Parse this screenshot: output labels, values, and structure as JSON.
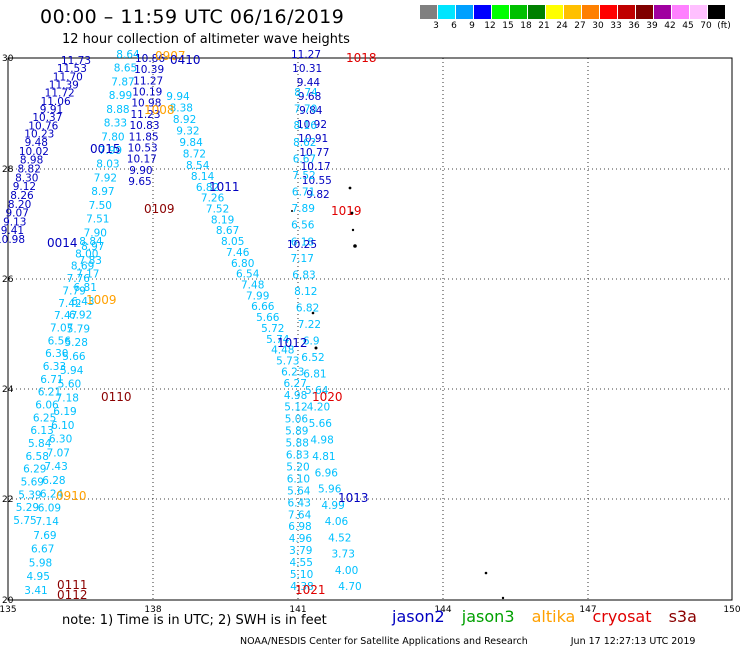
{
  "title": "00:00 – 11:59 UTC 06/16/2019",
  "subtitle": "12 hour collection of altimeter wave heights",
  "scale": {
    "colors": [
      "#808080",
      "#00e5ff",
      "#00a0ff",
      "#0000ff",
      "#00ff00",
      "#00c000",
      "#008000",
      "#ffff00",
      "#ffc000",
      "#ff8000",
      "#ff0000",
      "#c00000",
      "#800000",
      "#a000a0",
      "#ff80ff",
      "#ffc0ff",
      "#000000"
    ],
    "ticks": [
      "3",
      "6",
      "9",
      "12",
      "15",
      "18",
      "21",
      "24",
      "27",
      "30",
      "33",
      "36",
      "39",
      "42",
      "45",
      "70",
      "(ft)"
    ]
  },
  "axes": {
    "x_ticks": [
      "135",
      "138",
      "141",
      "144",
      "147",
      "150"
    ],
    "y_ticks": [
      "30",
      "28",
      "26",
      "24",
      "22",
      "20"
    ]
  },
  "tracks": [
    {
      "color": "#00c0ff",
      "labels": [
        "8.64",
        "8.65",
        "7.87",
        "8.99",
        "8.88",
        "8.33",
        "7.80",
        "7.99",
        "8.03",
        "7.92",
        "8.97",
        "7.50",
        "7.51",
        "7.90",
        "8.97",
        "7.83",
        "7.17",
        "6.81",
        "6.43",
        "6.92",
        "5.79",
        "5.28",
        "5.66",
        "5.94",
        "5.60",
        "7.18",
        "6.19",
        "6.10",
        "6.30",
        "7.07",
        "7.43",
        "6.28",
        "6.24",
        "6.09",
        "7.14",
        "7.69",
        "6.67",
        "5.98",
        "4.95",
        "3.41"
      ]
    },
    {
      "color": "#0000c0",
      "labels": [
        "10.86",
        "10.39",
        "11.27",
        "10.19",
        "10.98",
        "11.23",
        "10.83",
        "11.85",
        "10.53",
        "10.17",
        "9.90",
        "9.65"
      ]
    },
    {
      "color": "#00c0ff",
      "labels": [
        "9.94",
        "8.38",
        "8.92",
        "9.32",
        "9.84",
        "8.72",
        "8.54",
        "8.14",
        "6.82",
        "7.26",
        "7.52",
        "8.19",
        "8.67",
        "8.05",
        "7.46",
        "6.80",
        "6.54",
        "7.48",
        "7.99",
        "6.66",
        "5.66",
        "5.72",
        "5.74",
        "4.48",
        "5.73",
        "6.23",
        "6.27",
        "4.98",
        "5.12",
        "5.06",
        "5.89",
        "5.88",
        "6.83",
        "5.20",
        "6.10",
        "5.64",
        "6.43",
        "7.64",
        "6.98",
        "4.96",
        "3.79",
        "4.55",
        "5.10",
        "4.38"
      ]
    },
    {
      "color": "#0000c0",
      "labels": [
        "11.27",
        "10.31",
        "9.44",
        "9.68",
        "9.84",
        "10.92",
        "10.91",
        "10.77",
        "10.17",
        "10.55",
        "9.82"
      ]
    },
    {
      "color": "#00c0ff",
      "labels": [
        "8.74",
        "7.70",
        "8.16",
        "8.62",
        "6.67",
        "7.52",
        "6.71",
        "7.89",
        "6.56",
        "6.18",
        "7.17",
        "6.83",
        "8.12",
        "6.82",
        "7.22",
        "6.9",
        "6.52",
        "6.81",
        "5.64",
        "4.20",
        "5.66",
        "4.98",
        "4.81",
        "6.96",
        "5.96",
        "4.99",
        "4.06",
        "4.52",
        "3.73",
        "4.00",
        "4.70"
      ]
    },
    {
      "color": "#0000c0",
      "labels": [
        "10.25"
      ]
    },
    {
      "color": "#0000c0",
      "labels": [
        "11.73",
        "11.53",
        "11.70",
        "11.39",
        "11.72",
        "11.06",
        "9.91",
        "10.37",
        "10.76",
        "10.23",
        "9.48",
        "10.02",
        "8.98",
        "8.82",
        "8.30",
        "9.12",
        "8.26",
        "8.20",
        "9.07",
        "9.13",
        "9.41",
        "10.98"
      ]
    },
    {
      "color": "#00c0ff",
      "labels": [
        "8.84",
        "8.00",
        "8.69",
        "7.76",
        "7.79",
        "7.42",
        "7.47",
        "7.07",
        "6.56",
        "6.30",
        "6.33",
        "6.71",
        "6.21",
        "6.06",
        "6.25",
        "6.13",
        "5.84",
        "6.58",
        "6.29",
        "5.69",
        "5.39",
        "5.29",
        "5.75"
      ]
    }
  ],
  "cycles": [
    {
      "text": "0907",
      "color": "#ffa000"
    },
    {
      "text": "0410",
      "color": "#0000c0"
    },
    {
      "text": "1018",
      "color": "#e00000"
    },
    {
      "text": "1008",
      "color": "#ffa000"
    },
    {
      "text": "0015",
      "color": "#0000c0"
    },
    {
      "text": "1011",
      "color": "#0000c0"
    },
    {
      "text": "0109",
      "color": "#8b0000"
    },
    {
      "text": "1019",
      "color": "#e00000"
    },
    {
      "text": "0014",
      "color": "#0000c0"
    },
    {
      "text": "1009",
      "color": "#ffa000"
    },
    {
      "text": "1012",
      "color": "#0000c0"
    },
    {
      "text": "0110",
      "color": "#8b0000"
    },
    {
      "text": "1020",
      "color": "#e00000"
    },
    {
      "text": "0910",
      "color": "#ffa000"
    },
    {
      "text": "1013",
      "color": "#0000c0"
    },
    {
      "text": "0111",
      "color": "#8b0000"
    },
    {
      "text": "0112",
      "color": "#8b0000"
    },
    {
      "text": "1021",
      "color": "#e00000"
    }
  ],
  "note": "note:  1) Time is in UTC;  2) SWH is in feet",
  "satellites": [
    {
      "name": "jason2",
      "color": "#0000c0"
    },
    {
      "name": "jason3",
      "color": "#00a000"
    },
    {
      "name": "altika",
      "color": "#ffa000"
    },
    {
      "name": "cryosat",
      "color": "#e00000"
    },
    {
      "name": "s3a",
      "color": "#8b0000"
    }
  ],
  "footer": {
    "center": "NOAA/NESDIS Center for Satellite Applications and Research",
    "timestamp": "Jun 17 12:27:13 UTC 2019"
  }
}
